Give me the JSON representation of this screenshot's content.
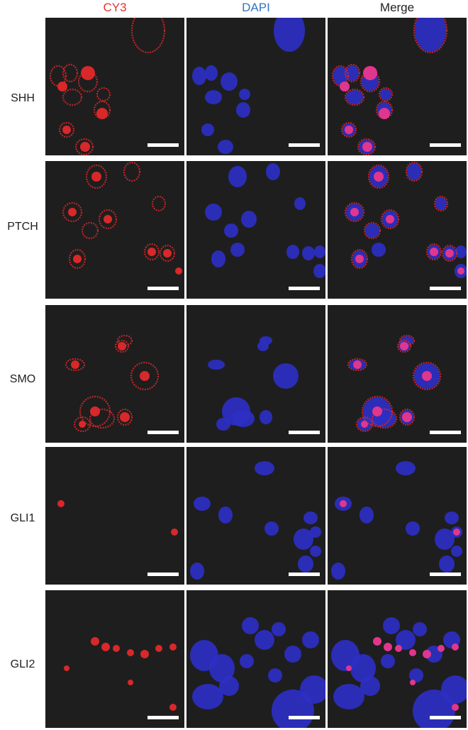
{
  "figure": {
    "columns": [
      {
        "label": "CY3",
        "color": "#e8312d",
        "channel": "red"
      },
      {
        "label": "DAPI",
        "color": "#2f74c7",
        "channel": "blue"
      },
      {
        "label": "Merge",
        "color": "#222222",
        "channel": "merge"
      }
    ],
    "rows": [
      {
        "label": "SHH"
      },
      {
        "label": "PTCH"
      },
      {
        "label": "SMO"
      },
      {
        "label": "GLI1"
      },
      {
        "label": "GLI2"
      }
    ],
    "panel_background": "#1e1e1e",
    "scale_bar_color": "#ffffff",
    "stain_colors": {
      "cy3": "#d8282a",
      "dapi": "#2c2fc4",
      "merge": "#e0368e"
    }
  }
}
